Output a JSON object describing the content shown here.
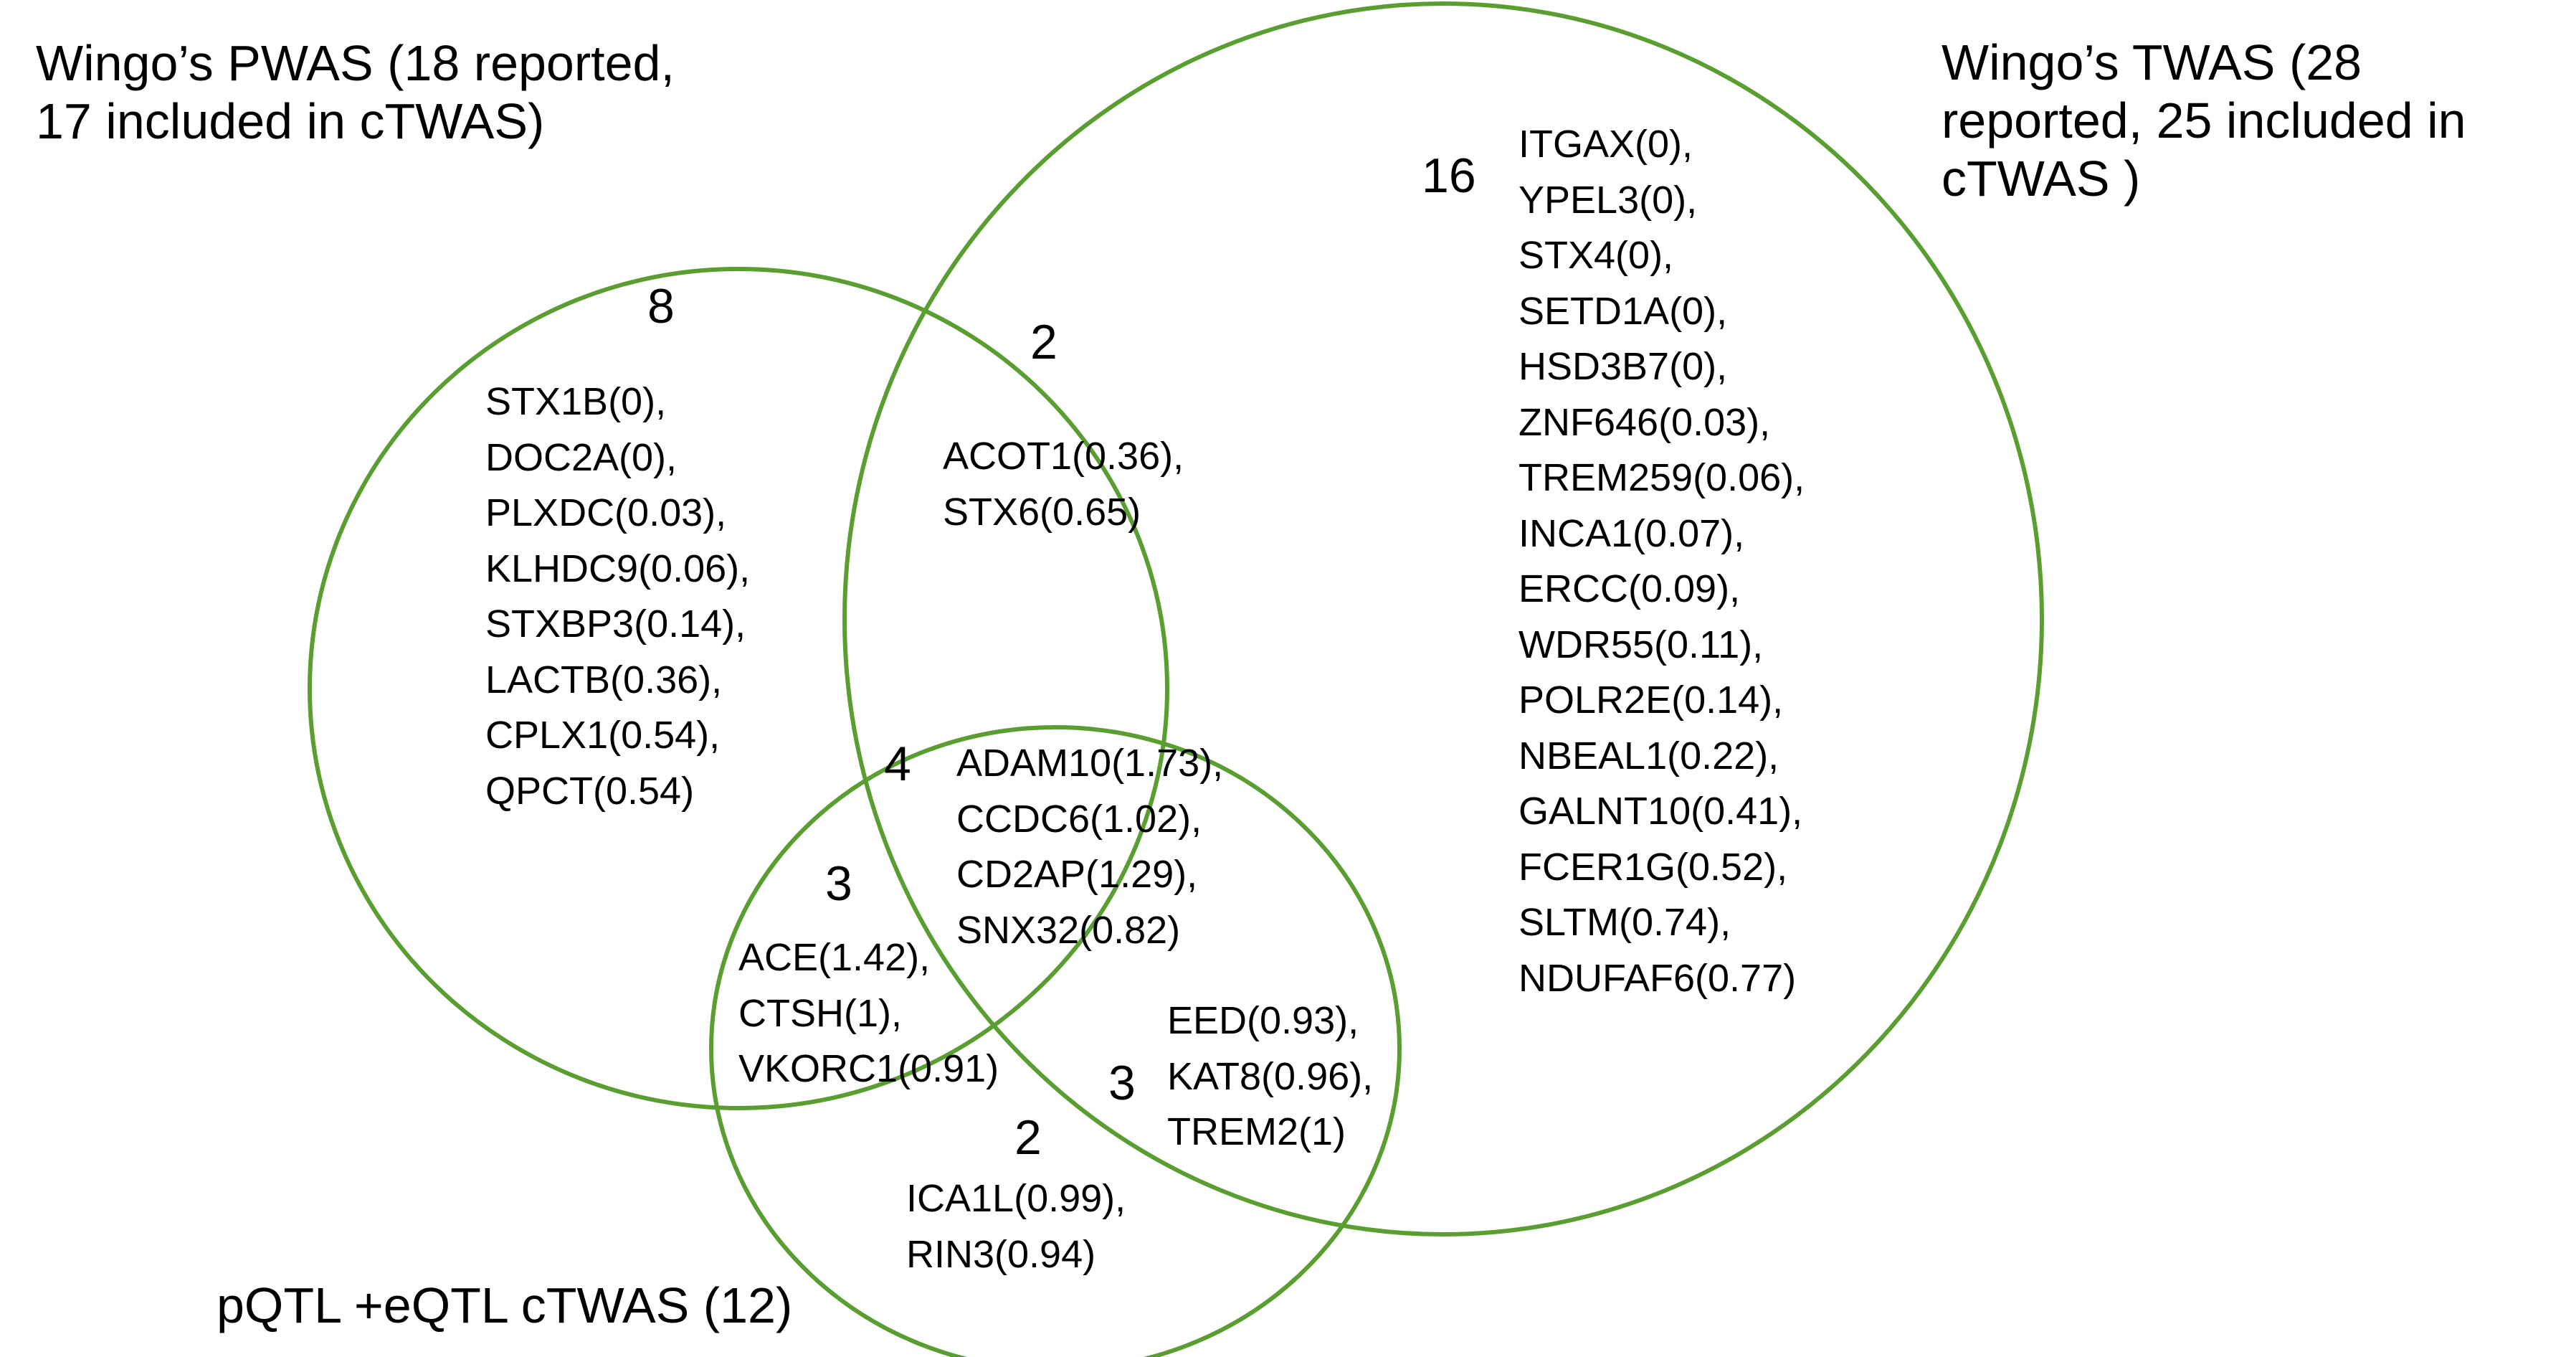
{
  "colors": {
    "circle_stroke": "#5a9e32",
    "text": "#000000",
    "background": "#ffffff"
  },
  "sets": {
    "pwas": {
      "title_line1": "Wingo’s PWAS (18 reported,",
      "title_line2": "17 included in cTWAS)"
    },
    "twas": {
      "title_line1": "Wingo’s TWAS (28",
      "title_line2": "reported, 25 included in",
      "title_line3": "cTWAS )"
    },
    "ctwas": {
      "title": "pQTL +eQTL cTWAS (12)"
    }
  },
  "regions": {
    "pwas_only": {
      "count": "8",
      "genes": [
        "STX1B(0),",
        "DOC2A(0),",
        "PLXDC(0.03),",
        "KLHDC9(0.06),",
        "STXBP3(0.14),",
        "LACTB(0.36),",
        "CPLX1(0.54),",
        "QPCT(0.54)"
      ]
    },
    "pwas_twas": {
      "count": "2",
      "genes": [
        "ACOT1(0.36),",
        "STX6(0.65)"
      ]
    },
    "twas_only": {
      "count": "16",
      "genes": [
        "ITGAX(0),",
        "YPEL3(0),",
        "STX4(0),",
        "SETD1A(0),",
        "HSD3B7(0),",
        "ZNF646(0.03),",
        "TREM259(0.06),",
        "INCA1(0.07),",
        "ERCC(0.09),",
        "WDR55(0.11),",
        "POLR2E(0.14),",
        "NBEAL1(0.22),",
        "GALNT10(0.41),",
        "FCER1G(0.52),",
        "SLTM(0.74),",
        "NDUFAF6(0.77)"
      ]
    },
    "all_three": {
      "count": "4",
      "genes": [
        "ADAM10(1.73),",
        "CCDC6(1.02),",
        "CD2AP(1.29),",
        "SNX32(0.82)"
      ]
    },
    "pwas_ctwas": {
      "count": "3",
      "genes": [
        "ACE(1.42),",
        "CTSH(1),",
        "VKORC1(0.91)"
      ]
    },
    "twas_ctwas": {
      "count": "3",
      "genes": [
        "EED(0.93),",
        "KAT8(0.96),",
        "TREM2(1)"
      ]
    },
    "ctwas_only": {
      "count": "2",
      "genes": [
        "ICA1L(0.99),",
        "RIN3(0.94)"
      ]
    }
  }
}
